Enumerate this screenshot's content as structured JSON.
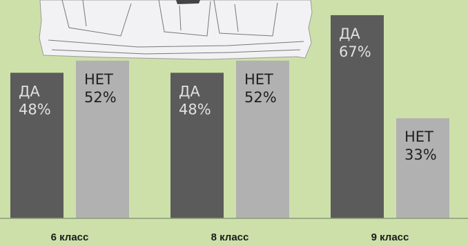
{
  "chart_data": {
    "type": "bar",
    "title": "",
    "xlabel": "",
    "ylabel": "",
    "categories": [
      "6 класс",
      "8 класс",
      "9 класс"
    ],
    "series": [
      {
        "key": "yes",
        "label": "ДА",
        "values": [
          48,
          48,
          67
        ],
        "value_labels": [
          "48%",
          "48%",
          "67%"
        ]
      },
      {
        "key": "no",
        "label": "НЕТ",
        "values": [
          52,
          52,
          33
        ],
        "value_labels": [
          "52%",
          "52%",
          "33%"
        ]
      }
    ],
    "ylim": [
      0,
      72
    ],
    "grid": false,
    "legend": "none"
  },
  "colors": {
    "background": "#cde0a9",
    "yes_bar": "#5b5b5b",
    "no_bar": "#b1b1b1",
    "baseline": "#8a9a7a",
    "drawing": "#f2f2f4"
  },
  "decoration": {
    "icon": "hand-drawn-folders-sketch"
  }
}
